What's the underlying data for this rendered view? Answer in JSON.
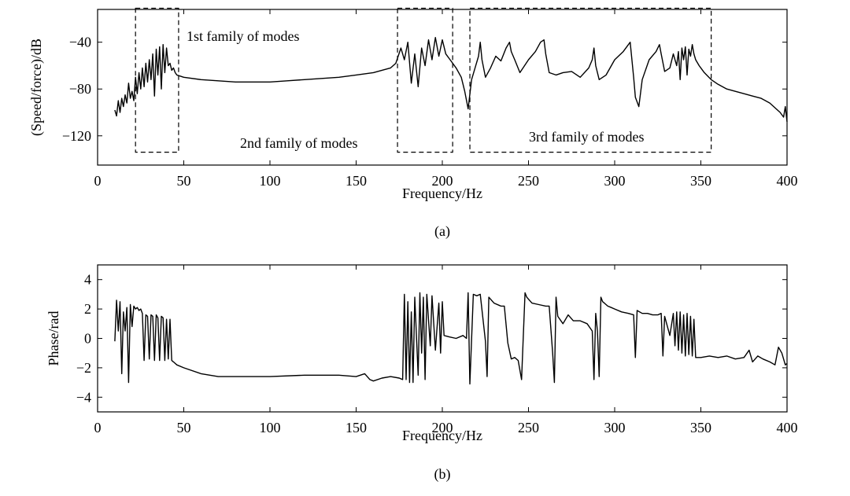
{
  "chart_data": [
    {
      "panel_label": "(a)",
      "type": "line",
      "xlabel": "Frequency/Hz",
      "ylabel": "(Speed/force)/dB",
      "xlim": [
        0,
        400
      ],
      "ylim": [
        -145,
        -12
      ],
      "xticks": [
        0,
        50,
        100,
        150,
        200,
        250,
        300,
        350,
        400
      ],
      "yticks": [
        -40,
        -80,
        -120
      ],
      "grid": false,
      "series": [
        {
          "x": [
            10,
            11,
            12,
            13,
            14,
            15,
            16,
            17,
            18,
            19,
            20,
            21,
            22,
            23,
            24,
            25,
            26,
            27,
            28,
            29,
            30,
            31,
            32,
            33,
            34,
            35,
            36,
            37,
            38,
            39,
            40,
            41,
            42,
            43,
            44,
            45,
            46,
            50,
            60,
            70,
            80,
            90,
            100,
            110,
            120,
            130,
            140,
            150,
            160,
            165,
            170,
            173,
            176,
            178,
            180,
            182,
            184,
            186,
            188,
            190,
            192,
            194,
            196,
            198,
            200,
            202,
            205,
            208,
            211,
            213,
            215,
            217,
            219,
            221,
            222,
            223,
            225,
            228,
            231,
            234,
            237,
            239,
            240,
            242,
            245,
            250,
            254,
            257,
            259,
            260,
            262,
            266,
            270,
            275,
            280,
            285,
            287,
            288,
            289,
            291,
            295,
            300,
            305,
            309,
            311,
            312,
            314,
            316,
            320,
            324,
            326,
            327,
            329,
            332,
            334,
            336,
            337,
            338,
            339,
            340,
            341,
            342,
            343,
            344,
            345,
            346,
            347,
            349,
            352,
            356,
            360,
            365,
            370,
            375,
            380,
            385,
            390,
            393,
            396,
            398,
            399,
            400
          ],
          "y": [
            -98,
            -103,
            -90,
            -100,
            -88,
            -95,
            -85,
            -92,
            -75,
            -88,
            -82,
            -90,
            -70,
            -84,
            -66,
            -80,
            -62,
            -78,
            -58,
            -74,
            -55,
            -72,
            -50,
            -86,
            -46,
            -68,
            -44,
            -80,
            -42,
            -66,
            -45,
            -60,
            -58,
            -64,
            -62,
            -66,
            -68,
            -70,
            -72,
            -73,
            -74,
            -74,
            -74,
            -73,
            -72,
            -71,
            -70,
            -68,
            -66,
            -64,
            -62,
            -58,
            -45,
            -55,
            -40,
            -75,
            -50,
            -78,
            -45,
            -60,
            -38,
            -55,
            -36,
            -52,
            -38,
            -50,
            -56,
            -62,
            -70,
            -82,
            -97,
            -72,
            -62,
            -52,
            -40,
            -55,
            -70,
            -62,
            -52,
            -56,
            -45,
            -40,
            -48,
            -55,
            -66,
            -55,
            -48,
            -40,
            -38,
            -50,
            -66,
            -68,
            -66,
            -65,
            -70,
            -62,
            -55,
            -45,
            -60,
            -72,
            -68,
            -55,
            -48,
            -40,
            -70,
            -87,
            -95,
            -72,
            -55,
            -48,
            -42,
            -50,
            -65,
            -62,
            -50,
            -60,
            -48,
            -72,
            -45,
            -55,
            -44,
            -68,
            -46,
            -52,
            -42,
            -50,
            -55,
            -60,
            -66,
            -72,
            -76,
            -80,
            -82,
            -84,
            -86,
            -88,
            -92,
            -96,
            -100,
            -104,
            -95,
            -108
          ]
        }
      ],
      "annotations": [
        {
          "text": "1st family of modes",
          "x_range": [
            22,
            47
          ],
          "y_range": [
            -134,
            -11
          ]
        },
        {
          "text": "2nd family of modes",
          "x_range": [
            174,
            206
          ],
          "y_range": [
            -134,
            -11
          ]
        },
        {
          "text": "3rd family of modes",
          "x_range": [
            216,
            356
          ],
          "y_range": [
            -134,
            -11
          ]
        }
      ]
    },
    {
      "panel_label": "(b)",
      "type": "line",
      "xlabel": "Frequency/Hz",
      "ylabel": "Phase/rad",
      "xlim": [
        0,
        400
      ],
      "ylim": [
        -5,
        5
      ],
      "xticks": [
        0,
        50,
        100,
        150,
        200,
        250,
        300,
        350,
        400
      ],
      "yticks": [
        4,
        2,
        0,
        -2,
        -4
      ],
      "grid": false,
      "series": [
        {
          "x": [
            10,
            11,
            12,
            13,
            14,
            15,
            16,
            17,
            18,
            19,
            20,
            21,
            22,
            23,
            24,
            25,
            26,
            27,
            28,
            29,
            30,
            31,
            32,
            33,
            34,
            35,
            36,
            37,
            38,
            39,
            40,
            41,
            42,
            43,
            44,
            46,
            50,
            60,
            70,
            80,
            100,
            120,
            140,
            150,
            155,
            158,
            160,
            165,
            170,
            175,
            177,
            178,
            179,
            180,
            181,
            182,
            183,
            184,
            186,
            187,
            188,
            189,
            190,
            191,
            193,
            194,
            196,
            198,
            199,
            200,
            201,
            204,
            208,
            212,
            214,
            215,
            216,
            218,
            220,
            222,
            225,
            226,
            227,
            230,
            234,
            236,
            238,
            240,
            242,
            244,
            246,
            248,
            249,
            252,
            256,
            260,
            262,
            264,
            265,
            266,
            267,
            270,
            273,
            276,
            280,
            284,
            287,
            288,
            289,
            290,
            291,
            292,
            293,
            294,
            296,
            298,
            300,
            304,
            308,
            311,
            312,
            313,
            316,
            319,
            322,
            325,
            327,
            328,
            329,
            332,
            334,
            335,
            336,
            337,
            338,
            339,
            340,
            341,
            342,
            343,
            344,
            345,
            346,
            347,
            350,
            355,
            360,
            365,
            370,
            375,
            378,
            380,
            383,
            386,
            390,
            393,
            395,
            397,
            399,
            400
          ],
          "y": [
            -0.2,
            2.6,
            0.5,
            2.5,
            -2.4,
            1.8,
            0.5,
            2.1,
            -3.0,
            2.3,
            0.8,
            2.2,
            2.0,
            2.1,
            1.9,
            2.0,
            1.7,
            -1.5,
            1.6,
            1.5,
            -1.4,
            1.6,
            1.5,
            -1.5,
            1.6,
            1.4,
            -1.5,
            1.5,
            1.4,
            -1.5,
            1.3,
            -1.4,
            1.3,
            -1.5,
            -1.6,
            -1.8,
            -2.0,
            -2.4,
            -2.6,
            -2.6,
            -2.6,
            -2.5,
            -2.5,
            -2.6,
            -2.4,
            -2.8,
            -2.9,
            -2.7,
            -2.6,
            -2.7,
            -2.8,
            3.0,
            -2.8,
            2.5,
            -3.0,
            1.8,
            -3.0,
            2.8,
            -2.5,
            3.1,
            -1.0,
            2.8,
            -2.8,
            3.0,
            -0.5,
            2.9,
            -0.8,
            2.4,
            -1.0,
            2.5,
            0.2,
            0.1,
            0.0,
            0.2,
            0.0,
            3.1,
            -3.1,
            3.0,
            2.9,
            3.0,
            -0.2,
            -2.6,
            2.8,
            2.4,
            2.2,
            2.2,
            -0.3,
            -1.4,
            -1.3,
            -1.5,
            -2.8,
            3.1,
            2.8,
            2.4,
            2.3,
            2.2,
            2.2,
            -1.0,
            -3.0,
            2.8,
            1.5,
            1.0,
            1.6,
            1.2,
            1.2,
            1.0,
            0.5,
            -2.8,
            1.7,
            0.5,
            -2.6,
            2.8,
            2.5,
            2.4,
            2.2,
            2.1,
            2.0,
            1.8,
            1.7,
            1.6,
            -1.3,
            1.9,
            1.7,
            1.7,
            1.6,
            1.6,
            1.7,
            -1.2,
            1.5,
            0.2,
            1.7,
            -0.5,
            1.8,
            -0.8,
            1.8,
            -1.0,
            1.6,
            -1.2,
            1.7,
            -1.1,
            1.5,
            -1.2,
            1.3,
            -1.3,
            -1.3,
            -1.2,
            -1.3,
            -1.2,
            -1.4,
            -1.3,
            -0.8,
            -1.6,
            -1.2,
            -1.4,
            -1.6,
            -1.8,
            -0.6,
            -1.0,
            -1.8,
            -1.7
          ]
        }
      ]
    }
  ]
}
